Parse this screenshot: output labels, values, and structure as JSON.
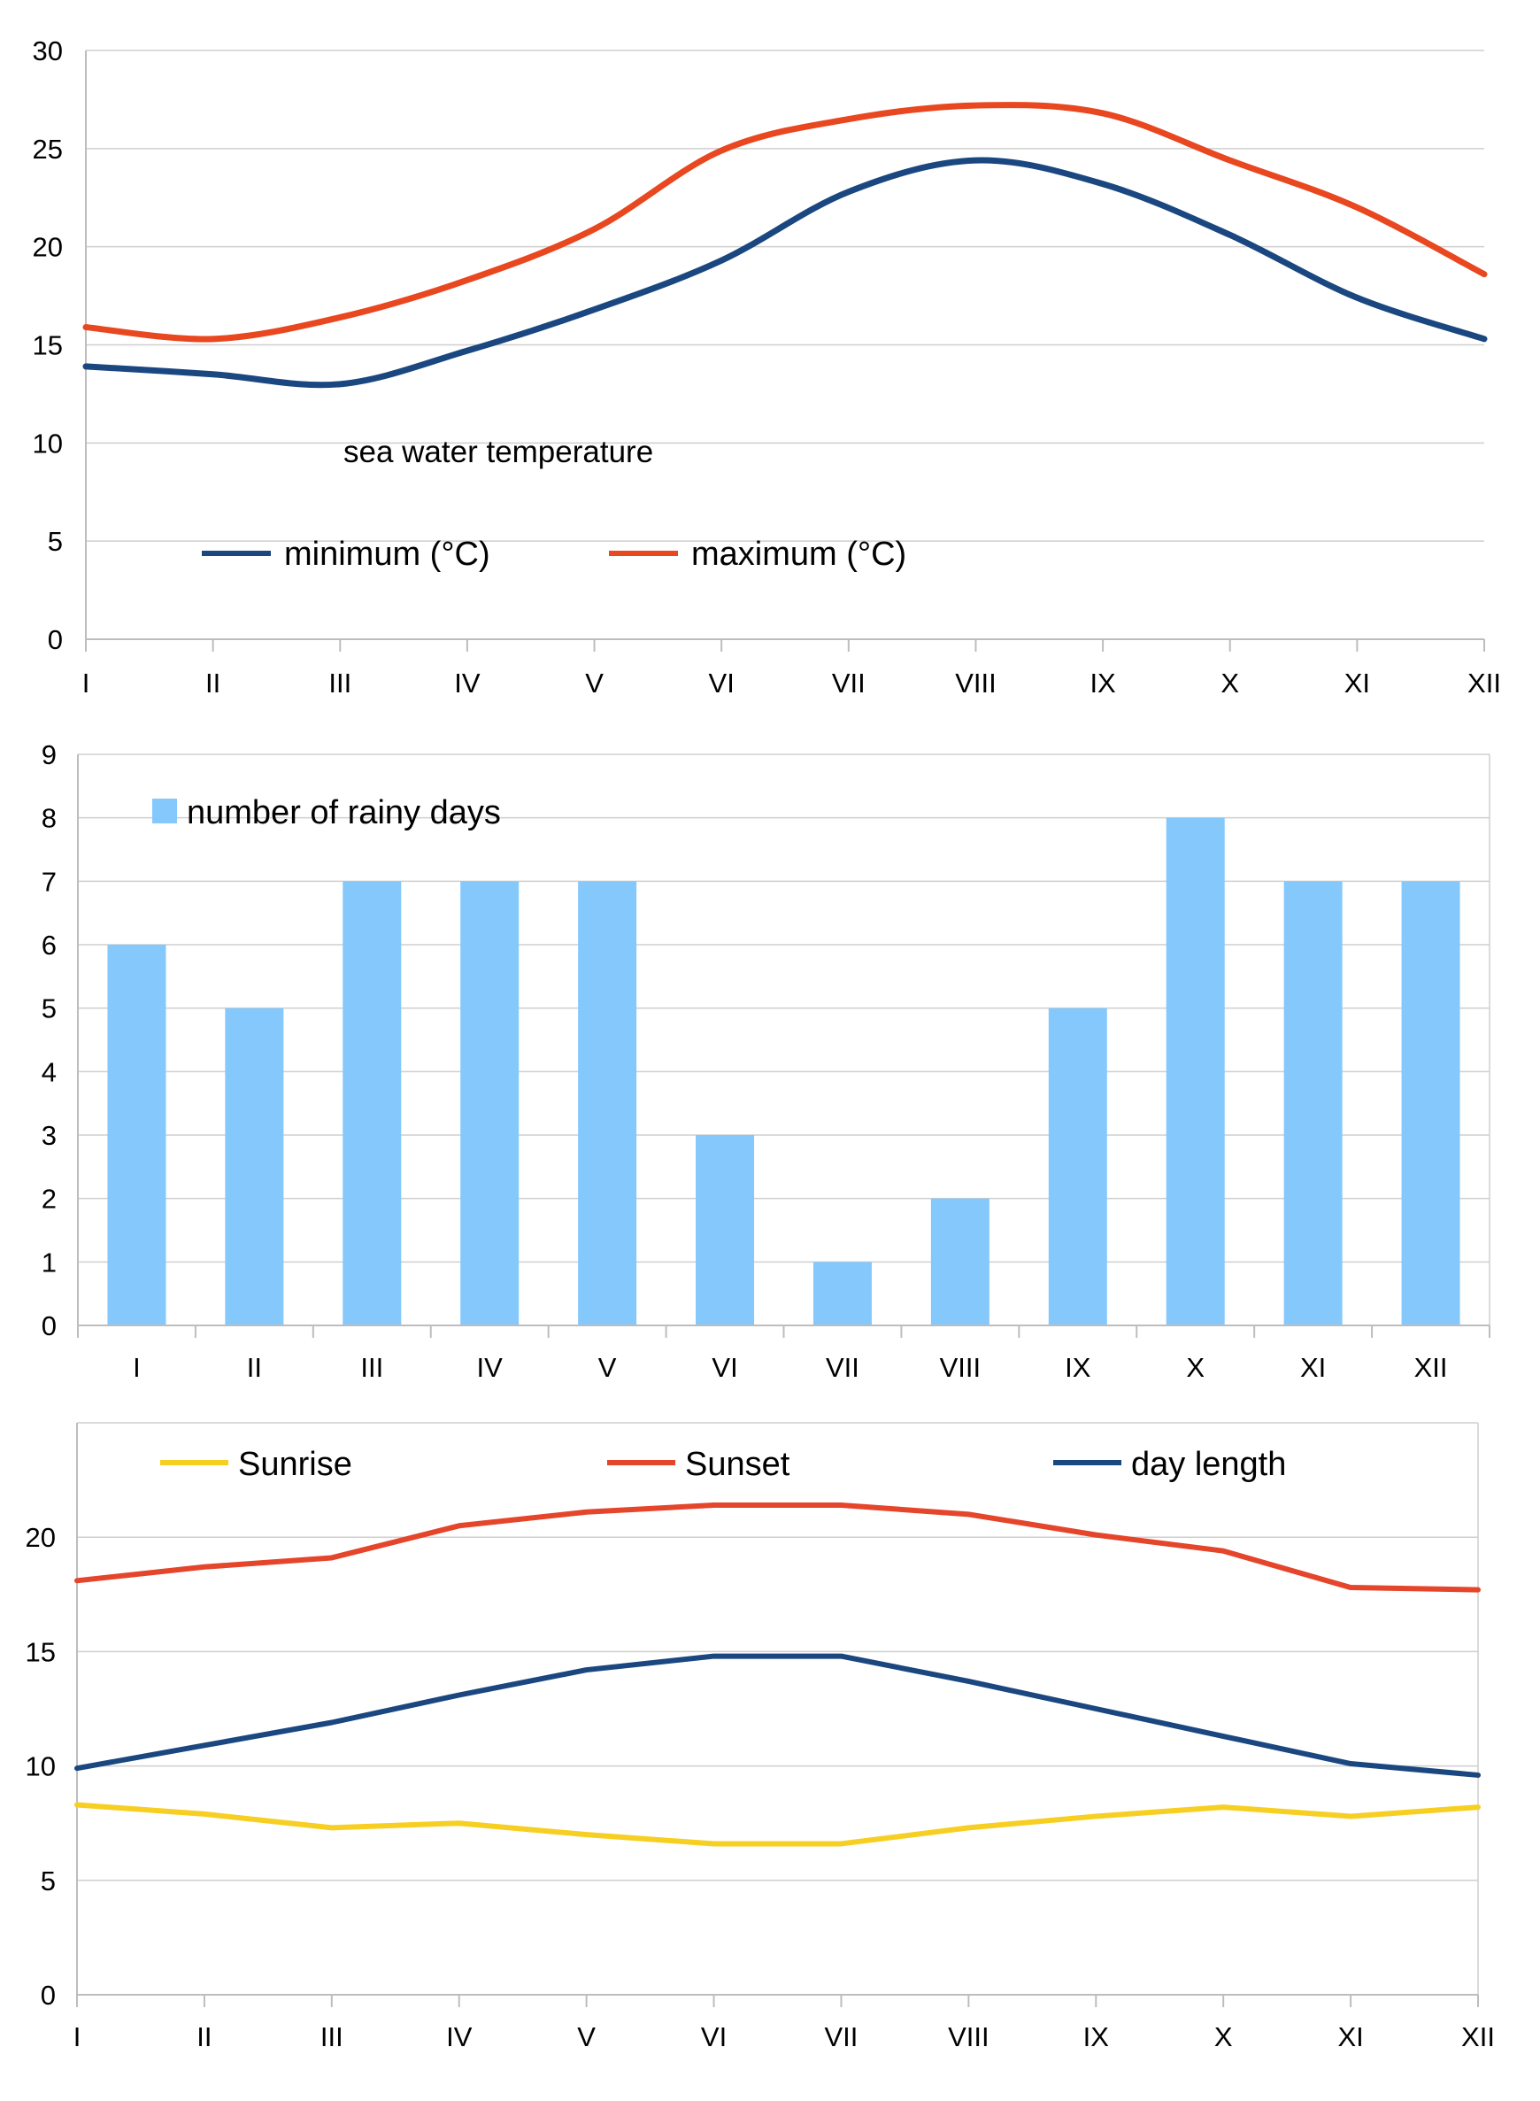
{
  "chart_data": [
    {
      "type": "line",
      "title": "",
      "xlabel": "",
      "ylabel": "",
      "categories": [
        "I",
        "II",
        "III",
        "IV",
        "V",
        "VI",
        "VII",
        "VIII",
        "IX",
        "X",
        "XI",
        "XII"
      ],
      "ylim": [
        0,
        30
      ],
      "yticks": [
        0,
        5,
        10,
        15,
        20,
        25,
        30
      ],
      "grid": true,
      "smooth": true,
      "annotation": "sea water temperature",
      "legend": "bottom-left",
      "series": [
        {
          "name": "minimum (°C)",
          "color": "#1a4780",
          "values": [
            13.9,
            13.5,
            13.0,
            14.7,
            16.8,
            19.3,
            22.8,
            24.4,
            23.2,
            20.6,
            17.4,
            15.3
          ]
        },
        {
          "name": "maximum (°C)",
          "color": "#e8471f",
          "values": [
            15.9,
            15.3,
            16.4,
            18.3,
            20.9,
            24.9,
            26.5,
            27.2,
            26.8,
            24.4,
            22.0,
            18.6
          ]
        }
      ]
    },
    {
      "type": "bar",
      "title": "",
      "xlabel": "",
      "ylabel": "",
      "categories": [
        "I",
        "II",
        "III",
        "IV",
        "V",
        "VI",
        "VII",
        "VIII",
        "IX",
        "X",
        "XI",
        "XII"
      ],
      "ylim": [
        0,
        9
      ],
      "yticks": [
        0,
        1,
        2,
        3,
        4,
        5,
        6,
        7,
        8,
        9
      ],
      "grid": true,
      "legend": "top-left",
      "series": [
        {
          "name": "number of rainy days",
          "color": "#85c8fb",
          "values": [
            6,
            5,
            7,
            7,
            7,
            3,
            1,
            2,
            5,
            8,
            7,
            7
          ]
        }
      ]
    },
    {
      "type": "line",
      "title": "",
      "xlabel": "",
      "ylabel": "",
      "categories": [
        "I",
        "II",
        "III",
        "IV",
        "V",
        "VI",
        "VII",
        "VIII",
        "IX",
        "X",
        "XI",
        "XII"
      ],
      "ylim": [
        0,
        25
      ],
      "yticks": [
        0,
        5,
        10,
        15,
        20
      ],
      "grid": true,
      "smooth": false,
      "legend": "top",
      "series": [
        {
          "name": "Sunrise",
          "color": "#f7cf22",
          "values": [
            8.3,
            7.9,
            7.3,
            7.5,
            7.0,
            6.6,
            6.6,
            7.3,
            7.8,
            8.2,
            7.8,
            8.2
          ]
        },
        {
          "name": "Sunset",
          "color": "#e4452b",
          "values": [
            18.1,
            18.7,
            19.1,
            20.5,
            21.1,
            21.4,
            21.4,
            21.0,
            20.1,
            19.4,
            17.8,
            17.7
          ]
        },
        {
          "name": "day length",
          "color": "#1a4780",
          "values": [
            9.9,
            10.9,
            11.9,
            13.1,
            14.2,
            14.8,
            14.8,
            13.7,
            12.5,
            11.3,
            10.1,
            9.6
          ]
        }
      ]
    }
  ]
}
